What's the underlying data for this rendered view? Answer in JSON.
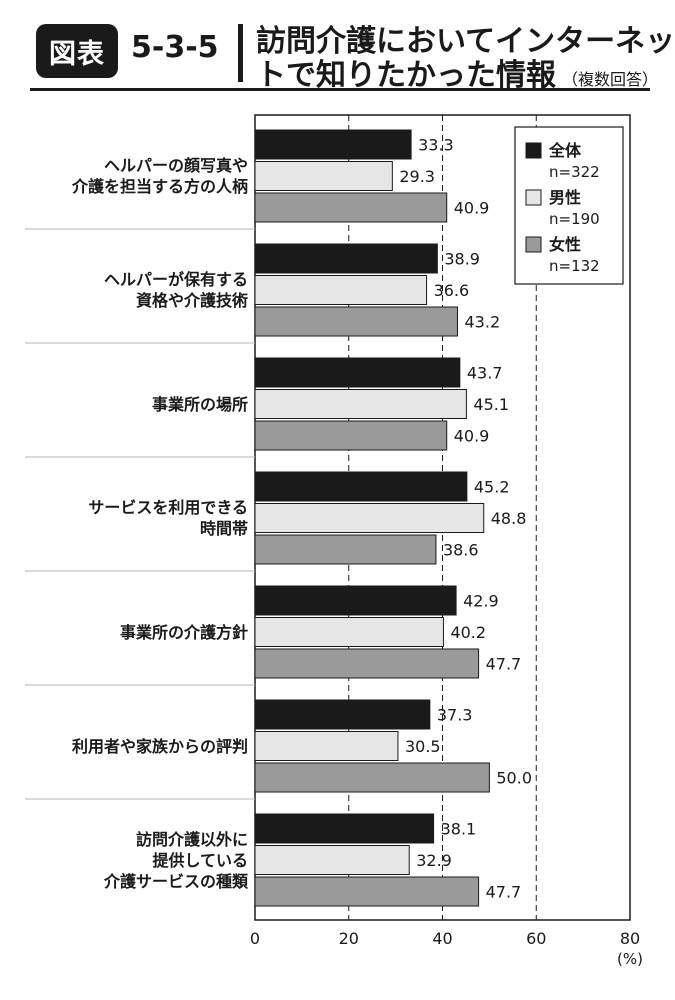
{
  "header": {
    "badge": "図表",
    "figure_number": "5-3-5",
    "title_line1": "訪問介護においてインターネッ",
    "title_line2": "トで知りたかった情報",
    "title_note": "（複数回答）"
  },
  "chart_data": {
    "type": "bar",
    "orientation": "horizontal",
    "categories": [
      [
        "ヘルパーの顔写真や",
        "介護を担当する方の人柄"
      ],
      [
        "ヘルパーが保有する",
        "資格や介護技術"
      ],
      [
        "事業所の場所"
      ],
      [
        "サービスを利用できる",
        "時間帯"
      ],
      [
        "事業所の介護方針"
      ],
      [
        "利用者や家族からの評判"
      ],
      [
        "訪問介護以外に",
        "提供している",
        "介護サービスの種類"
      ]
    ],
    "series": [
      {
        "name": "全体",
        "sub": "n=322",
        "color": "#1a1a1a",
        "values": [
          33.3,
          38.9,
          43.7,
          45.2,
          42.9,
          37.3,
          38.1
        ]
      },
      {
        "name": "男性",
        "sub": "n=190",
        "color": "#e6e6e6",
        "values": [
          29.3,
          36.6,
          45.1,
          48.8,
          40.2,
          30.5,
          32.9
        ]
      },
      {
        "name": "女性",
        "sub": "n=132",
        "color": "#9a9a9a",
        "values": [
          40.9,
          43.2,
          40.9,
          38.6,
          47.7,
          50.0,
          47.7
        ]
      }
    ],
    "value_labels": [
      [
        "33.3",
        "38.9",
        "43.7",
        "45.2",
        "42.9",
        "37.3",
        "38.1"
      ],
      [
        "29.3",
        "36.6",
        "45.1",
        "48.8",
        "40.2",
        "30.5",
        "32.9"
      ],
      [
        "40.9",
        "43.2",
        "40.9",
        "38.6",
        "47.7",
        "50.0",
        "47.7"
      ]
    ],
    "xlim": [
      0,
      80
    ],
    "xticks": [
      0,
      20,
      40,
      60,
      80
    ],
    "xunit": "(%)",
    "gridlines": "dashed at 20, 40, 60",
    "legend_position": "top-right"
  }
}
